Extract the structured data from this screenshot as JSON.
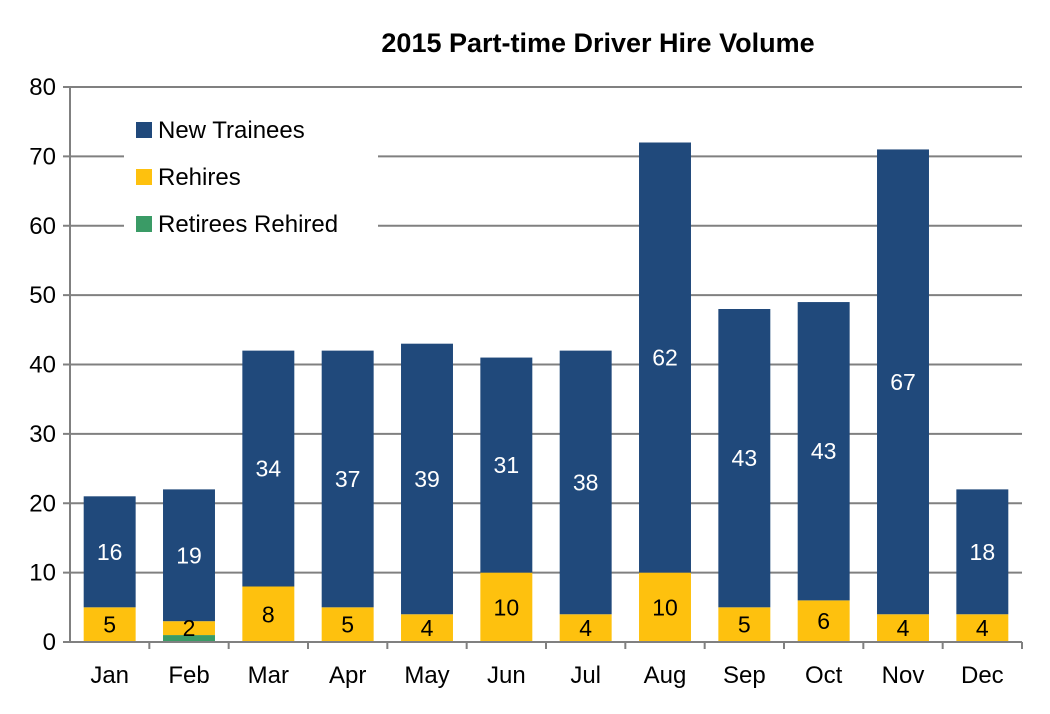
{
  "chart_data": {
    "type": "bar",
    "stacked": true,
    "title": "2015 Part-time Driver Hire Volume",
    "xlabel": "",
    "ylabel": "",
    "ylim": [
      0,
      80
    ],
    "yticks": [
      0,
      10,
      20,
      30,
      40,
      50,
      60,
      70,
      80
    ],
    "grid": true,
    "legend_position": "top-left",
    "categories": [
      "Jan",
      "Feb",
      "Mar",
      "Apr",
      "May",
      "Jun",
      "Jul",
      "Aug",
      "Sep",
      "Oct",
      "Nov",
      "Dec"
    ],
    "series": [
      {
        "name": "Retirees Rehired",
        "color": "#3a9b66",
        "values": [
          0,
          1,
          0,
          0,
          0,
          0,
          0,
          0,
          0,
          0,
          0,
          0
        ],
        "labels": [
          "",
          "",
          "",
          "",
          "",
          "",
          "",
          "",
          "",
          "",
          "",
          ""
        ]
      },
      {
        "name": "Rehires",
        "color": "#fec10e",
        "values": [
          5,
          2,
          8,
          5,
          4,
          10,
          4,
          10,
          5,
          6,
          4,
          4
        ],
        "labels": [
          "5",
          "2",
          "8",
          "5",
          "4",
          "10",
          "4",
          "10",
          "5",
          "6",
          "4",
          "4"
        ]
      },
      {
        "name": "New Trainees",
        "color": "#20497b",
        "values": [
          16,
          19,
          34,
          37,
          39,
          31,
          38,
          62,
          43,
          43,
          67,
          18
        ],
        "labels": [
          "16",
          "19",
          "34",
          "37",
          "39",
          "31",
          "38",
          "62",
          "43",
          "43",
          "67",
          "18"
        ]
      }
    ],
    "legend_order": [
      "New Trainees",
      "Rehires",
      "Retirees Rehired"
    ]
  }
}
